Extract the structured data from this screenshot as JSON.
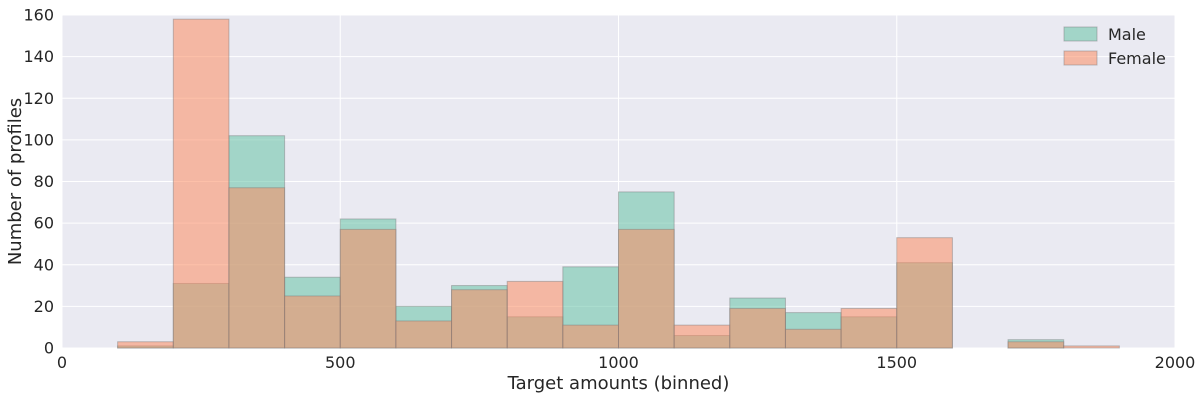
{
  "chart_data": {
    "type": "bar",
    "title": "",
    "xlabel": "Target amounts (binned)",
    "ylabel": "Number of profiles",
    "xlim": [
      0,
      2000
    ],
    "ylim": [
      0,
      160
    ],
    "grid": true,
    "legend_position": "top-right",
    "x_ticks": [
      "0",
      "500",
      "1000",
      "1500",
      "2000"
    ],
    "y_ticks": [
      "0",
      "20",
      "40",
      "60",
      "80",
      "100",
      "120",
      "140",
      "160"
    ],
    "bin_edges": [
      100,
      200,
      300,
      400,
      500,
      600,
      700,
      800,
      900,
      1000,
      1100,
      1200,
      1300,
      1400,
      1500,
      1600,
      1700,
      1800,
      1900
    ],
    "series": [
      {
        "name": "Male",
        "color": "#66c2a5",
        "values": [
          1,
          31,
          102,
          34,
          62,
          20,
          30,
          15,
          39,
          75,
          6,
          24,
          17,
          15,
          41,
          0,
          4,
          0
        ]
      },
      {
        "name": "Female",
        "color": "#fc8d62",
        "values": [
          3,
          158,
          77,
          25,
          57,
          13,
          28,
          32,
          11,
          57,
          11,
          19,
          9,
          19,
          53,
          0,
          3,
          1
        ]
      }
    ]
  }
}
